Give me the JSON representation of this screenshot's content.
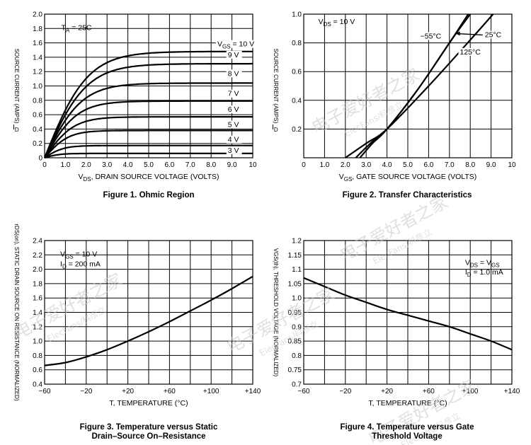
{
  "watermark": {
    "primary": "电子爱好者之家",
    "secondary": "ElecFans/科彦立"
  },
  "chart_data": [
    {
      "id": "fig1",
      "type": "line",
      "caption": "Figure 1. Ohmic Region",
      "xlabel_var": "V",
      "xlabel_sub": "DS",
      "xlabel_text": ", DRAIN SOURCE VOLTAGE (VOLTS)",
      "ylabel_var": "I",
      "ylabel_sub": "D",
      "ylabel_text": "SOURCE CURRENT (AMPS)",
      "xlim": [
        0,
        10
      ],
      "ylim": [
        0,
        2.0
      ],
      "xticks": [
        "0",
        "1.0",
        "2.0",
        "3.0",
        "4.0",
        "5.0",
        "6.0",
        "7.0",
        "8.0",
        "9.0",
        "10"
      ],
      "yticks": [
        "0",
        "0.2",
        "0.4",
        "0.6",
        "0.8",
        "1.0",
        "1.2",
        "1.4",
        "1.6",
        "1.8",
        "2.0"
      ],
      "annotations": [
        {
          "text": "T",
          "sub": "A",
          "after": " = 25C",
          "x": 0.8,
          "y": 1.78
        }
      ],
      "series": [
        {
          "name": "VGS = 10 V",
          "label": "10 V",
          "prefix": "V",
          "prefix_sub": "GS",
          "prefix_eq": " = ",
          "sat": 1.48,
          "k": 0.42,
          "label_x": 8.3,
          "label_y": 1.55
        },
        {
          "name": "9 V",
          "label": "9 V",
          "sat": 1.31,
          "k": 0.43,
          "label_x": 8.8,
          "label_y": 1.4
        },
        {
          "name": "8 V",
          "label": "8 V",
          "sat": 1.04,
          "k": 0.48,
          "label_x": 8.8,
          "label_y": 1.14
        },
        {
          "name": "7 V",
          "label": "7 V",
          "sat": 0.79,
          "k": 0.55,
          "label_x": 8.8,
          "label_y": 0.86
        },
        {
          "name": "6 V",
          "label": "6 V",
          "sat": 0.57,
          "k": 0.62,
          "label_x": 8.8,
          "label_y": 0.64
        },
        {
          "name": "5 V",
          "label": "5 V",
          "sat": 0.38,
          "k": 0.75,
          "label_x": 8.8,
          "label_y": 0.43
        },
        {
          "name": "4 V",
          "label": "4 V",
          "sat": 0.17,
          "k": 0.95,
          "label_x": 8.8,
          "label_y": 0.22
        },
        {
          "name": "3 V",
          "label": "3 V",
          "sat": 0.06,
          "k": 1.2,
          "label_x": 8.8,
          "label_y": 0.07
        }
      ]
    },
    {
      "id": "fig2",
      "type": "line",
      "caption": "Figure 2. Transfer Characteristics",
      "xlabel_var": "V",
      "xlabel_sub": "GS",
      "xlabel_text": ", GATE SOURCE VOLTAGE (VOLTS)",
      "ylabel_var": "I",
      "ylabel_sub": "D",
      "ylabel_text": "SOURCE CURRENT (AMPS)",
      "xlim": [
        0,
        10
      ],
      "ylim": [
        0,
        1.0
      ],
      "xticks": [
        "0",
        "1.0",
        "2.0",
        "3.0",
        "4.0",
        "5.0",
        "6.0",
        "7.0",
        "8.0",
        "9.0",
        "10"
      ],
      "yticks": [
        "",
        "0.2",
        "0.4",
        "0.6",
        "0.8",
        "1.0"
      ],
      "annotations": [
        {
          "text": "V",
          "sub": "DS",
          "after": " = 10 V",
          "x": 0.7,
          "y": 0.93
        }
      ],
      "series": [
        {
          "name": "-55°C",
          "label": "−55°C",
          "points": [
            [
              2.5,
              0
            ],
            [
              3.2,
              0.1
            ],
            [
              4.0,
              0.2
            ],
            [
              5.5,
              0.48
            ],
            [
              7.0,
              0.8
            ],
            [
              7.9,
              1.0
            ]
          ],
          "label_x": 5.6,
          "label_y": 0.83
        },
        {
          "name": "25°C",
          "label": "25°C",
          "points": [
            [
              2.7,
              0
            ],
            [
              3.3,
              0.1
            ],
            [
              4.0,
              0.2
            ],
            [
              5.5,
              0.48
            ],
            [
              7.0,
              0.8
            ],
            [
              8.0,
              1.0
            ]
          ],
          "label_x": 8.7,
          "label_y": 0.84
        },
        {
          "name": "125°C",
          "label": "125°C",
          "points": [
            [
              2.0,
              0
            ],
            [
              3.0,
              0.1
            ],
            [
              4.0,
              0.2
            ],
            [
              6.0,
              0.5
            ],
            [
              8.0,
              0.82
            ],
            [
              9.1,
              1.0
            ]
          ],
          "label_x": 7.5,
          "label_y": 0.72
        }
      ]
    },
    {
      "id": "fig3",
      "type": "line",
      "caption": "Figure 3. Temperature versus Static\nDrain–Source On–Resistance",
      "xlabel_text": "T, TEMPERATURE (°C)",
      "ylabel_text": "rDS(on), STATIC DRAIN SOURCE ON RESISTANCE (NORMALIZED)",
      "xlim": [
        -60,
        140
      ],
      "ylim": [
        0.4,
        2.4
      ],
      "xticks": [
        "−60",
        "−20",
        "+20",
        "+60",
        "+100",
        "+140"
      ],
      "yticks": [
        "0.4",
        "0.6",
        "0.8",
        "1.0",
        "1.2",
        "1.4",
        "1.6",
        "1.8",
        "2.0",
        "2.2",
        "2.4"
      ],
      "annotations": [
        {
          "text": "V",
          "sub": "GS",
          "after": " = 10 V",
          "x": -45,
          "y": 2.18
        },
        {
          "text": "I",
          "sub": "D",
          "after": " = 200 mA",
          "x": -45,
          "y": 2.04
        }
      ],
      "series": [
        {
          "name": "rDS(on)",
          "points": [
            [
              -60,
              0.66
            ],
            [
              -40,
              0.7
            ],
            [
              -20,
              0.78
            ],
            [
              0,
              0.88
            ],
            [
              20,
              1.0
            ],
            [
              40,
              1.13
            ],
            [
              60,
              1.27
            ],
            [
              80,
              1.42
            ],
            [
              100,
              1.57
            ],
            [
              120,
              1.73
            ],
            [
              140,
              1.9
            ]
          ]
        }
      ]
    },
    {
      "id": "fig4",
      "type": "line",
      "caption": "Figure 4. Temperature versus Gate\nThreshold Voltage",
      "xlabel_text": "T, TEMPERATURE (°C)",
      "ylabel_text": "VGS(th), THRESHOLD VOLTAGE (NORMALIZED)",
      "xlim": [
        -60,
        140
      ],
      "ylim": [
        0.7,
        1.2
      ],
      "xticks": [
        "−60",
        "−20",
        "+20",
        "+60",
        "+100",
        "+140"
      ],
      "yticks": [
        "0.7",
        "0.75",
        "0.8",
        "0.85",
        "0.9",
        "0.95",
        "1.0",
        "1.05",
        "1.1",
        "1.15",
        "1.2"
      ],
      "annotations": [
        {
          "text": "V",
          "sub": "DS",
          "after": " = V",
          "after_sub": "GS",
          "x": 95,
          "y": 1.115
        },
        {
          "text": "I",
          "sub": "D",
          "after": " = 1.0 mA",
          "x": 95,
          "y": 1.082
        }
      ],
      "series": [
        {
          "name": "VGS(th)",
          "points": [
            [
              -60,
              1.07
            ],
            [
              -40,
              1.04
            ],
            [
              -20,
              1.01
            ],
            [
              0,
              0.985
            ],
            [
              20,
              0.96
            ],
            [
              40,
              0.94
            ],
            [
              60,
              0.92
            ],
            [
              80,
              0.9
            ],
            [
              100,
              0.875
            ],
            [
              120,
              0.85
            ],
            [
              140,
              0.82
            ]
          ]
        }
      ]
    }
  ]
}
